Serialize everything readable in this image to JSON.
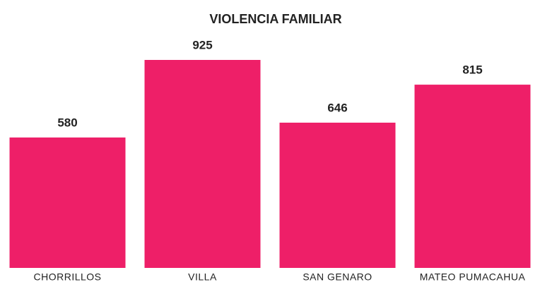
{
  "chart_data": {
    "type": "bar",
    "title": "VIOLENCIA FAMILIAR",
    "categories": [
      "CHORRILLOS",
      "VILLA",
      "SAN GENARO",
      "MATEO PUMACAHUA"
    ],
    "values": [
      580,
      925,
      646,
      815
    ],
    "color": "#ee1f68"
  }
}
